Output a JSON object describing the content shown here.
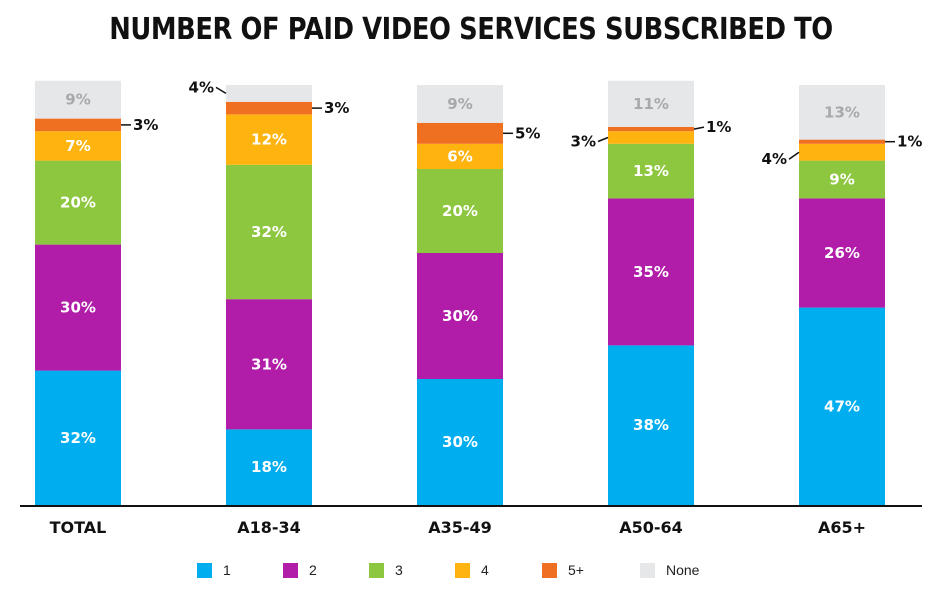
{
  "chart_data": {
    "type": "bar",
    "stacked": true,
    "title": "NUMBER OF PAID VIDEO SERVICES SUBSCRIBED TO",
    "categories": [
      "TOTAL",
      "A18-34",
      "A35-49",
      "A50-64",
      "A65+"
    ],
    "series": [
      {
        "name": "1",
        "color": "#00aeef",
        "values": [
          32,
          18,
          30,
          38,
          47
        ]
      },
      {
        "name": "2",
        "color": "#b11ca8",
        "values": [
          30,
          31,
          30,
          35,
          26
        ]
      },
      {
        "name": "3",
        "color": "#8dc63f",
        "values": [
          20,
          32,
          20,
          13,
          9
        ]
      },
      {
        "name": "4",
        "color": "#ffb30f",
        "values": [
          7,
          12,
          6,
          3,
          4
        ]
      },
      {
        "name": "5+",
        "color": "#f07022",
        "values": [
          3,
          3,
          5,
          1,
          1
        ]
      },
      {
        "name": "None",
        "color": "#e6e7e9",
        "values": [
          9,
          4,
          9,
          11,
          13
        ]
      }
    ],
    "data_labels": [
      [
        "32%",
        "30%",
        "20%",
        "7%",
        "3%",
        "9%"
      ],
      [
        "18%",
        "31%",
        "32%",
        "12%",
        "3%",
        "4%"
      ],
      [
        "30%",
        "30%",
        "20%",
        "6%",
        "5%",
        "9%"
      ],
      [
        "38%",
        "35%",
        "13%",
        "3%",
        "1%",
        "11%"
      ],
      [
        "47%",
        "26%",
        "9%",
        "4%",
        "1%",
        "13%"
      ]
    ],
    "legend_position": "bottom",
    "grid": false
  }
}
